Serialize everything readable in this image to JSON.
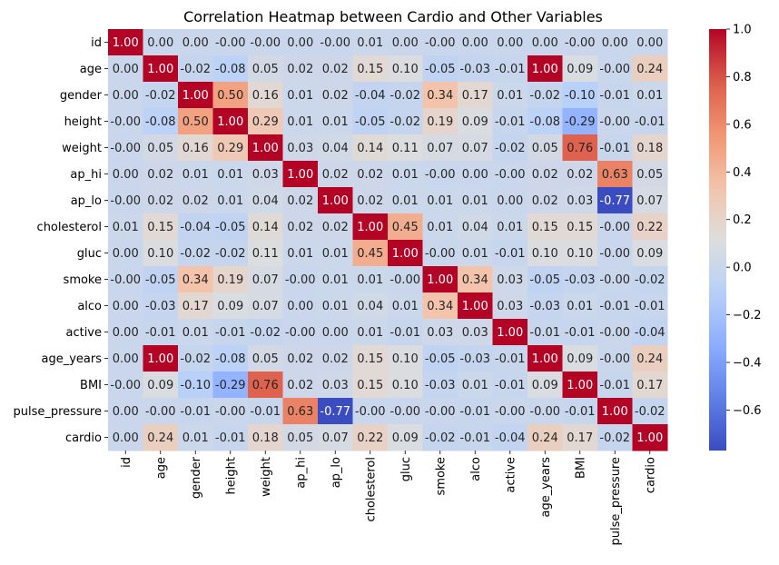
{
  "chart_data": {
    "type": "heatmap",
    "title": "Correlation Heatmap between Cardio and Other Variables",
    "rows": [
      "id",
      "age",
      "gender",
      "height",
      "weight",
      "ap_hi",
      "ap_lo",
      "cholesterol",
      "gluc",
      "smoke",
      "alco",
      "active",
      "age_years",
      "BMI",
      "pulse_pressure",
      "cardio"
    ],
    "columns": [
      "id",
      "age",
      "gender",
      "height",
      "weight",
      "ap_hi",
      "ap_lo",
      "cholesterol",
      "gluc",
      "smoke",
      "alco",
      "active",
      "age_years",
      "BMI",
      "pulse_pressure",
      "cardio"
    ],
    "value_labels": [
      [
        "1.00",
        "0.00",
        "0.00",
        "-0.00",
        "-0.00",
        "0.00",
        "-0.00",
        "0.01",
        "0.00",
        "-0.00",
        "0.00",
        "0.00",
        "0.00",
        "-0.00",
        "0.00",
        "0.00"
      ],
      [
        "0.00",
        "1.00",
        "-0.02",
        "-0.08",
        "0.05",
        "0.02",
        "0.02",
        "0.15",
        "0.10",
        "-0.05",
        "-0.03",
        "-0.01",
        "1.00",
        "0.09",
        "-0.00",
        "0.24"
      ],
      [
        "0.00",
        "-0.02",
        "1.00",
        "0.50",
        "0.16",
        "0.01",
        "0.02",
        "-0.04",
        "-0.02",
        "0.34",
        "0.17",
        "0.01",
        "-0.02",
        "-0.10",
        "-0.01",
        "0.01"
      ],
      [
        "-0.00",
        "-0.08",
        "0.50",
        "1.00",
        "0.29",
        "0.01",
        "0.01",
        "-0.05",
        "-0.02",
        "0.19",
        "0.09",
        "-0.01",
        "-0.08",
        "-0.29",
        "-0.00",
        "-0.01"
      ],
      [
        "-0.00",
        "0.05",
        "0.16",
        "0.29",
        "1.00",
        "0.03",
        "0.04",
        "0.14",
        "0.11",
        "0.07",
        "0.07",
        "-0.02",
        "0.05",
        "0.76",
        "-0.01",
        "0.18"
      ],
      [
        "0.00",
        "0.02",
        "0.01",
        "0.01",
        "0.03",
        "1.00",
        "0.02",
        "0.02",
        "0.01",
        "-0.00",
        "0.00",
        "-0.00",
        "0.02",
        "0.02",
        "0.63",
        "0.05"
      ],
      [
        "-0.00",
        "0.02",
        "0.02",
        "0.01",
        "0.04",
        "0.02",
        "1.00",
        "0.02",
        "0.01",
        "0.01",
        "0.01",
        "0.00",
        "0.02",
        "0.03",
        "-0.77",
        "0.07"
      ],
      [
        "0.01",
        "0.15",
        "-0.04",
        "-0.05",
        "0.14",
        "0.02",
        "0.02",
        "1.00",
        "0.45",
        "0.01",
        "0.04",
        "0.01",
        "0.15",
        "0.15",
        "-0.00",
        "0.22"
      ],
      [
        "0.00",
        "0.10",
        "-0.02",
        "-0.02",
        "0.11",
        "0.01",
        "0.01",
        "0.45",
        "1.00",
        "-0.00",
        "0.01",
        "-0.01",
        "0.10",
        "0.10",
        "-0.00",
        "0.09"
      ],
      [
        "-0.00",
        "-0.05",
        "0.34",
        "0.19",
        "0.07",
        "-0.00",
        "0.01",
        "0.01",
        "-0.00",
        "1.00",
        "0.34",
        "0.03",
        "-0.05",
        "-0.03",
        "-0.00",
        "-0.02"
      ],
      [
        "0.00",
        "-0.03",
        "0.17",
        "0.09",
        "0.07",
        "0.00",
        "0.01",
        "0.04",
        "0.01",
        "0.34",
        "1.00",
        "0.03",
        "-0.03",
        "0.01",
        "-0.01",
        "-0.01"
      ],
      [
        "0.00",
        "-0.01",
        "0.01",
        "-0.01",
        "-0.02",
        "-0.00",
        "0.00",
        "0.01",
        "-0.01",
        "0.03",
        "0.03",
        "1.00",
        "-0.01",
        "-0.01",
        "-0.00",
        "-0.04"
      ],
      [
        "0.00",
        "1.00",
        "-0.02",
        "-0.08",
        "0.05",
        "0.02",
        "0.02",
        "0.15",
        "0.10",
        "-0.05",
        "-0.03",
        "-0.01",
        "1.00",
        "0.09",
        "-0.00",
        "0.24"
      ],
      [
        "-0.00",
        "0.09",
        "-0.10",
        "-0.29",
        "0.76",
        "0.02",
        "0.03",
        "0.15",
        "0.10",
        "-0.03",
        "0.01",
        "-0.01",
        "0.09",
        "1.00",
        "-0.01",
        "0.17"
      ],
      [
        "0.00",
        "-0.00",
        "-0.01",
        "-0.00",
        "-0.01",
        "0.63",
        "-0.77",
        "-0.00",
        "-0.00",
        "-0.00",
        "-0.01",
        "-0.00",
        "-0.00",
        "-0.01",
        "1.00",
        "-0.02"
      ],
      [
        "0.00",
        "0.24",
        "0.01",
        "-0.01",
        "0.18",
        "0.05",
        "0.07",
        "0.22",
        "0.09",
        "-0.02",
        "-0.01",
        "-0.04",
        "0.24",
        "0.17",
        "-0.02",
        "1.00"
      ]
    ],
    "colormap": "coolwarm",
    "color_range": [
      -0.77,
      1.0
    ],
    "colorbar_ticks": [
      "1.0",
      "0.8",
      "0.6",
      "0.4",
      "0.2",
      "0.0",
      "−0.2",
      "−0.4",
      "−0.6"
    ],
    "colorbar_tick_values": [
      1.0,
      0.8,
      0.6,
      0.4,
      0.2,
      0.0,
      -0.2,
      -0.4,
      -0.6
    ],
    "grid": false,
    "colorbar_placement": "right"
  }
}
